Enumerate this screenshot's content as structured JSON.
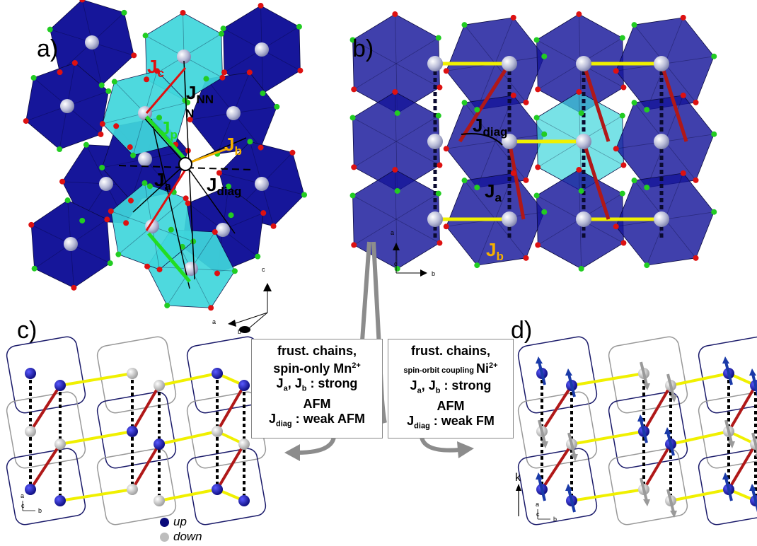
{
  "panels": {
    "a": "a)",
    "b": "b)",
    "c": "c)",
    "d": "d)"
  },
  "labels_a": {
    "jc_main": "J",
    "jc_sub": "c",
    "jnnn_main": "J",
    "jnnn_sub": "NN",
    "jnnn_sub2": "N",
    "jp_main": "J",
    "jp_sub": "p",
    "jb_main": "J",
    "jb_sub": "b",
    "ja_main": "J",
    "ja_sub": "a",
    "jdiag_main": "J",
    "jdiag_sub": "diag"
  },
  "labels_b": {
    "jdiag_main": "J",
    "jdiag_sub": "diag",
    "ja_main": "J",
    "ja_sub": "a",
    "jb_main": "J",
    "jb_sub": "b"
  },
  "axes": {
    "a_c": "c",
    "a_a": "a",
    "a_b": "b",
    "b_a": "a",
    "b_c": "c",
    "b_b": "b",
    "c_a": "a",
    "c_c": "c",
    "c_b": "b",
    "d_a": "a",
    "d_c": "c",
    "d_b": "b",
    "d_k": "k"
  },
  "box_left": {
    "line1": "frust. chains,",
    "line2a": "spin-only Mn",
    "line2sup": "2+",
    "line3a": "J",
    "line3sub1": "a",
    "line3b": ", J",
    "line3sub2": "b",
    "line3c": " : strong",
    "line4": "AFM",
    "line5a": "J",
    "line5sub": "diag",
    "line5b": " : weak AFM"
  },
  "box_right": {
    "line1": "frust. chains,",
    "line2a": "spin-orbit coupling ",
    "line2b": "Ni",
    "line2sup": "2+",
    "line3a": "J",
    "line3sub1": "a",
    "line3b": ", J",
    "line3sub2": "b",
    "line3c": " : strong",
    "line4": "AFM",
    "line5a": "J",
    "line5sub": "diag",
    "line5b": " : weak FM"
  },
  "legend": {
    "up": "up",
    "down": "down",
    "up_color": "#0a0a7a",
    "down_color": "#bdbdbd"
  },
  "colors": {
    "octa_dark": "#16169a",
    "octa_cyan": "#3fd6dc",
    "jc_red": "#e01010",
    "jp_green": "#22dd22",
    "jb_orange": "#f5b000",
    "bond_yellow": "#f0f000",
    "bond_red": "#b01818",
    "arrow_grey": "#8c8c8c"
  }
}
